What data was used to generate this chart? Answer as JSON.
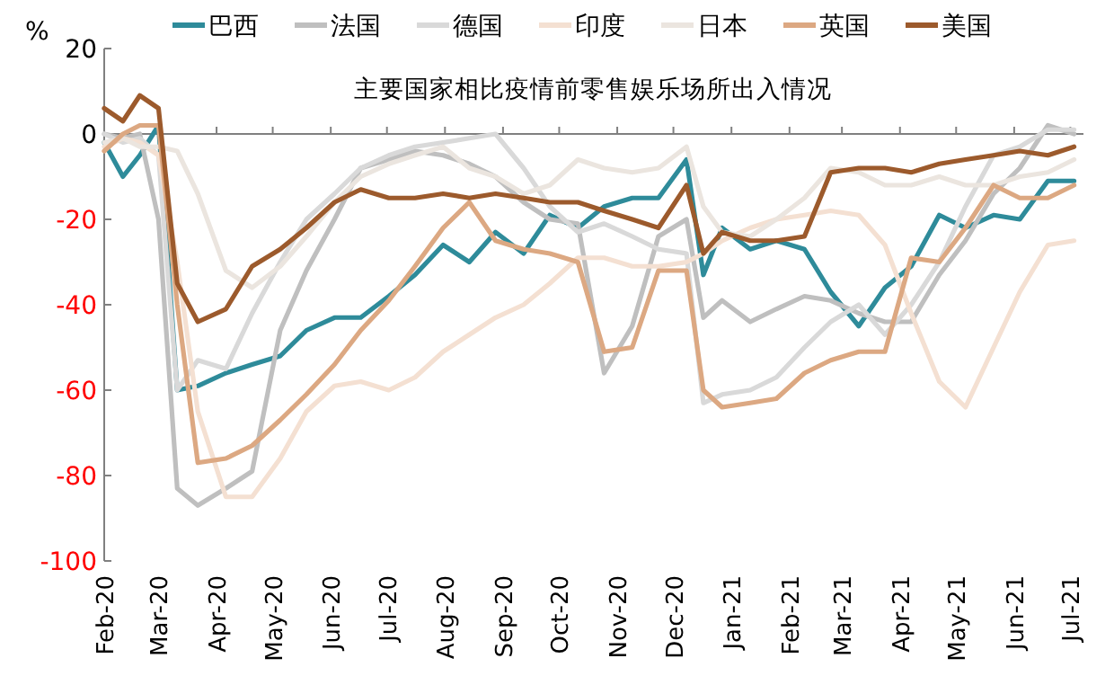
{
  "chart_data": {
    "type": "line",
    "title": "主要国家相比疫情前零售娱乐场所出入情况",
    "ylabel": "%",
    "legend": "top",
    "line_style": "solid",
    "x": [
      "2020-02-15",
      "2020-02-25",
      "2020-03-05",
      "2020-03-15",
      "2020-03-25",
      "2020-04-05",
      "2020-04-20",
      "2020-05-04",
      "2020-05-19",
      "2020-06-02",
      "2020-06-17",
      "2020-07-01",
      "2020-07-16",
      "2020-07-30",
      "2020-08-14",
      "2020-08-28",
      "2020-09-11",
      "2020-09-26",
      "2020-10-10",
      "2020-10-25",
      "2020-11-08",
      "2020-11-23",
      "2020-12-07",
      "2020-12-22",
      "2020-12-31",
      "2021-01-10",
      "2021-01-25",
      "2021-02-08",
      "2021-02-23",
      "2021-03-09",
      "2021-03-24",
      "2021-04-07",
      "2021-04-21",
      "2021-05-06",
      "2021-05-20",
      "2021-06-04",
      "2021-06-18",
      "2021-07-03",
      "2021-07-17"
    ],
    "xlim": [
      "2020-02-15",
      "2021-07-22"
    ],
    "xticks": [
      {
        "value": "2020-02-15",
        "label": "Feb-20"
      },
      {
        "value": "2020-03-15",
        "label": "Mar-20"
      },
      {
        "value": "2020-04-15",
        "label": "Apr-20"
      },
      {
        "value": "2020-05-15",
        "label": "May-20"
      },
      {
        "value": "2020-06-15",
        "label": "Jun-20"
      },
      {
        "value": "2020-07-15",
        "label": "Jul-20"
      },
      {
        "value": "2020-08-15",
        "label": "Aug-20"
      },
      {
        "value": "2020-09-15",
        "label": "Sep-20"
      },
      {
        "value": "2020-10-15",
        "label": "Oct-20"
      },
      {
        "value": "2020-11-15",
        "label": "Nov-20"
      },
      {
        "value": "2020-12-15",
        "label": "Dec-20"
      },
      {
        "value": "2021-01-15",
        "label": "Jan-21"
      },
      {
        "value": "2021-02-15",
        "label": "Feb-21"
      },
      {
        "value": "2021-03-15",
        "label": "Mar-21"
      },
      {
        "value": "2021-04-15",
        "label": "Apr-21"
      },
      {
        "value": "2021-05-15",
        "label": "May-21"
      },
      {
        "value": "2021-06-15",
        "label": "Jun-21"
      },
      {
        "value": "2021-07-15",
        "label": "Jul-21"
      }
    ],
    "ylim": [
      -100,
      20
    ],
    "yticks": [
      20,
      0,
      -20,
      -40,
      -60,
      -80,
      -100
    ],
    "series": [
      {
        "name": "巴西",
        "color": "#2e8b9a",
        "values": [
          -2,
          -10,
          -5,
          2,
          -60,
          -59,
          -56,
          -54,
          -52,
          -46,
          -43,
          -43,
          -38,
          -33,
          -26,
          -30,
          -23,
          -28,
          -19,
          -22,
          -17,
          -15,
          -15,
          -6,
          -33,
          -22,
          -27,
          -25,
          -27,
          -37,
          -45,
          -36,
          -31,
          -19,
          -22,
          -19,
          -20,
          -11,
          -11
        ]
      },
      {
        "name": "法国",
        "color": "#bfbfbf",
        "values": [
          0,
          -1,
          0,
          -20,
          -83,
          -87,
          -83,
          -79,
          -46,
          -32,
          -20,
          -8,
          -6,
          -4,
          -5,
          -7,
          -10,
          -16,
          -20,
          -21,
          -56,
          -45,
          -24,
          -20,
          -43,
          -39,
          -44,
          -41,
          -38,
          -39,
          -42,
          -44,
          -44,
          -33,
          -25,
          -14,
          -8,
          2,
          0
        ]
      },
      {
        "name": "德国",
        "color": "#d9d9d9",
        "values": [
          0,
          -2,
          -1,
          -5,
          -60,
          -53,
          -55,
          -42,
          -30,
          -20,
          -14,
          -8,
          -5,
          -3,
          -2,
          -1,
          0,
          -8,
          -17,
          -23,
          -21,
          -24,
          -27,
          -28,
          -63,
          -61,
          -60,
          -57,
          -50,
          -44,
          -40,
          -47,
          -40,
          -30,
          -17,
          -5,
          -3,
          1,
          1
        ]
      },
      {
        "name": "印度",
        "color": "#f4e0d2",
        "values": [
          -3,
          -1,
          -2,
          -5,
          -30,
          -65,
          -85,
          -85,
          -76,
          -65,
          -59,
          -58,
          -60,
          -57,
          -51,
          -47,
          -43,
          -40,
          -35,
          -29,
          -29,
          -31,
          -31,
          -30,
          -28,
          -25,
          -22,
          -20,
          -19,
          -18,
          -19,
          -26,
          -42,
          -58,
          -64,
          -50,
          -37,
          -26,
          -25
        ]
      },
      {
        "name": "日本",
        "color": "#ebe5df",
        "values": [
          -2,
          -1,
          -3,
          -3,
          -4,
          -14,
          -32,
          -36,
          -31,
          -24,
          -16,
          -10,
          -7,
          -5,
          -3,
          -8,
          -10,
          -14,
          -12,
          -6,
          -8,
          -9,
          -8,
          -3,
          -17,
          -23,
          -24,
          -20,
          -15,
          -8,
          -9,
          -12,
          -12,
          -10,
          -12,
          -12,
          -10,
          -9,
          -6
        ]
      },
      {
        "name": "英国",
        "color": "#dca882",
        "values": [
          -4,
          0,
          2,
          2,
          -40,
          -77,
          -76,
          -73,
          -67,
          -61,
          -54,
          -46,
          -39,
          -31,
          -22,
          -16,
          -25,
          -27,
          -28,
          -30,
          -51,
          -50,
          -32,
          -32,
          -60,
          -64,
          -63,
          -62,
          -56,
          -53,
          -51,
          -51,
          -29,
          -30,
          -22,
          -12,
          -15,
          -15,
          -12
        ]
      },
      {
        "name": "美国",
        "color": "#9c5a2c",
        "values": [
          6,
          3,
          9,
          6,
          -35,
          -44,
          -41,
          -31,
          -27,
          -22,
          -16,
          -13,
          -15,
          -15,
          -14,
          -15,
          -14,
          -15,
          -16,
          -16,
          -18,
          -20,
          -22,
          -12,
          -28,
          -23,
          -25,
          -25,
          -24,
          -9,
          -8,
          -8,
          -9,
          -7,
          -6,
          -5,
          -4,
          -5,
          -3
        ]
      }
    ]
  }
}
